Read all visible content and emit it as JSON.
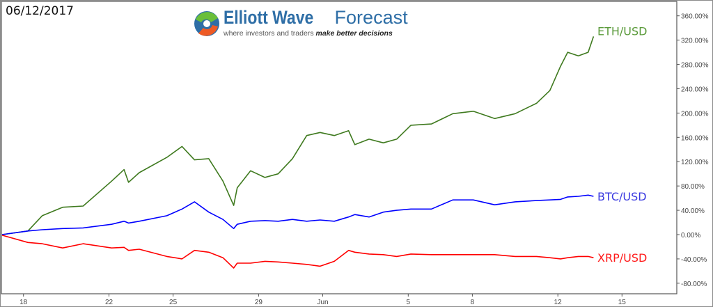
{
  "date_label": "06/12/2017",
  "logo": {
    "title_bold": "Elliott Wave",
    "title_light": "Forecast",
    "tagline": "where investors and traders",
    "tagline_emph": "make better decisions"
  },
  "chart_data": {
    "type": "line",
    "title": "",
    "xlabel": "",
    "ylabel": "",
    "y_unit": "%",
    "ylim": [
      -80,
      360
    ],
    "y_ticks": [
      "360.00%",
      "320.00%",
      "280.00%",
      "240.00%",
      "200.00%",
      "160.00%",
      "120.00%",
      "80.00%",
      "40.00%",
      "0.00%",
      "-40.00%",
      "-80.00%"
    ],
    "y_tick_values": [
      360,
      320,
      280,
      240,
      200,
      160,
      120,
      80,
      40,
      0,
      -40,
      -80
    ],
    "x_ticks": [
      {
        "label": "18",
        "date": "2017-05-18"
      },
      {
        "label": "22",
        "date": "2017-05-22"
      },
      {
        "label": "25",
        "date": "2017-05-25"
      },
      {
        "label": "29",
        "date": "2017-05-29"
      },
      {
        "label": "Jun",
        "date": "2017-06-01"
      },
      {
        "label": "5",
        "date": "2017-06-05"
      },
      {
        "label": "8",
        "date": "2017-06-08"
      },
      {
        "label": "12",
        "date": "2017-06-12"
      },
      {
        "label": "15",
        "date": "2017-06-15"
      }
    ],
    "xlim": [
      "2017-05-17T00:00",
      "2017-06-16T12:00"
    ],
    "axis_position": "right",
    "grid": false,
    "legend": "inline labels at line ends",
    "x": [
      "2017-05-17T00:00",
      "2017-05-18T05:00",
      "2017-05-18T21:00",
      "2017-05-19T20:00",
      "2017-05-20T19:00",
      "2017-05-22T03:00",
      "2017-05-22T17:00",
      "2017-05-22T22:00",
      "2017-05-23T10:00",
      "2017-05-24T17:00",
      "2017-05-25T10:00",
      "2017-05-26T00:00",
      "2017-05-26T16:00",
      "2017-05-27T08:00",
      "2017-05-27T20:00",
      "2017-05-28T00:00",
      "2017-05-28T15:00",
      "2017-05-29T07:00",
      "2017-05-29T22:00",
      "2017-05-30T14:00",
      "2017-05-31T06:00",
      "2017-05-31T21:00",
      "2017-06-01T13:00",
      "2017-06-02T05:00",
      "2017-06-02T12:00",
      "2017-06-03T04:00",
      "2017-06-03T20:00",
      "2017-06-04T11:00",
      "2017-06-05T03:00",
      "2017-06-06T02:00",
      "2017-06-07T02:00",
      "2017-06-08T01:00",
      "2017-06-09T01:00",
      "2017-06-10T00:00",
      "2017-06-11T00:00",
      "2017-06-11T15:00",
      "2017-06-12T03:00",
      "2017-06-12T11:00",
      "2017-06-12T23:00",
      "2017-06-13T10:00",
      "2017-06-13T16:00"
    ],
    "series": [
      {
        "name": "ETH/USD",
        "color": "#3f7a1f",
        "label_color": "#5a9a3a",
        "values": [
          0,
          6,
          31,
          45,
          47,
          88,
          107,
          86,
          102,
          127,
          145,
          123,
          125,
          88,
          48,
          77,
          105,
          94,
          100,
          125,
          163,
          168,
          163,
          171,
          148,
          157,
          151,
          157,
          180,
          182,
          199,
          203,
          191,
          199,
          216,
          237,
          277,
          300,
          294,
          300,
          326
        ]
      },
      {
        "name": "BTC/USD",
        "color": "#0000ff",
        "label_color": "#3a3ae0",
        "values": [
          0,
          6,
          8,
          10,
          11,
          17,
          22,
          19,
          22,
          31,
          42,
          54,
          37,
          25,
          10,
          17,
          22,
          23,
          22,
          25,
          22,
          24,
          22,
          29,
          33,
          29,
          37,
          40,
          42,
          42,
          57,
          57,
          49,
          54,
          56,
          57,
          58,
          62,
          63,
          65,
          63
        ]
      },
      {
        "name": "XRP/USD",
        "color": "#ff0000",
        "label_color": "#ff1a1a",
        "values": [
          -1,
          -13,
          -15,
          -22,
          -15,
          -22,
          -21,
          -26,
          -24,
          -36,
          -40,
          -26,
          -29,
          -38,
          -55,
          -47,
          -47,
          -44,
          -45,
          -47,
          -49,
          -52,
          -44,
          -26,
          -29,
          -32,
          -33,
          -36,
          -32,
          -33,
          -33,
          -33,
          -33,
          -36,
          -36,
          -38,
          -40,
          -38,
          -36,
          -36,
          -38
        ]
      }
    ]
  }
}
